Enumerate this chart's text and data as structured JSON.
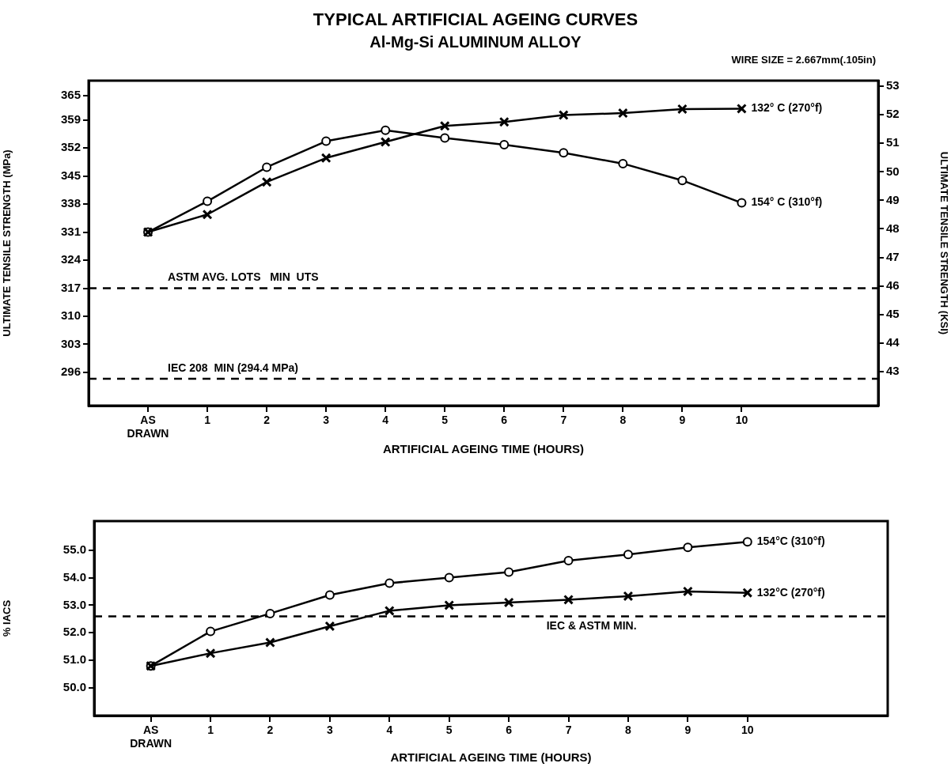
{
  "chart_data": [
    {
      "type": "line",
      "title": "TYPICAL ARTIFICIAL AGEING CURVES",
      "subtitle": "Al-Mg-Si ALUMINUM ALLOY",
      "annotations": [
        "WIRE SIZE = 2.667mm(.105in)"
      ],
      "xlabel": "ARTIFICIAL AGEING TIME (HOURS)",
      "ylabel": "ULTIMATE TENSILE STRENGTH (MPa)",
      "y2label": "ULTIMATE TENSILE STRENGTH (KSI)",
      "x": [
        0,
        1,
        2,
        3,
        4,
        5,
        6,
        7,
        8,
        9,
        10
      ],
      "xlim": [
        -1,
        12.3
      ],
      "xticks": [
        {
          "value": 0,
          "label": "AS DRAWN"
        },
        1,
        2,
        3,
        4,
        5,
        6,
        7,
        8,
        9,
        10
      ],
      "ylim": [
        287.7,
        368.8
      ],
      "yticks": [
        296,
        303,
        310,
        317,
        324,
        331,
        338,
        345,
        352,
        359,
        365
      ],
      "y2lim": [
        41.8,
        53.2
      ],
      "y2ticks": [
        43,
        44,
        45,
        46,
        47,
        48,
        49,
        50,
        51,
        52,
        53
      ],
      "grid": false,
      "line_style": "solid",
      "series": [
        {
          "name": "154° C (310°f)",
          "color": "#000000",
          "marker": "circle",
          "values": [
            331,
            338.7,
            347.2,
            353.7,
            356.4,
            354.5,
            352.8,
            350.8,
            348.1,
            343.9,
            338.3
          ]
        },
        {
          "name": "132° C (270°f)",
          "color": "#000000",
          "marker": "cross",
          "values": [
            331,
            335.4,
            343.5,
            349.5,
            353.5,
            357.5,
            358.5,
            360.2,
            360.7,
            361.7,
            361.8
          ]
        }
      ],
      "ref_lines": [
        {
          "axis": "y",
          "value": 317,
          "label": "ASTM AVG. LOTS   MIN  UTS",
          "color": "#000000",
          "line_style": "dashed"
        },
        {
          "axis": "y",
          "value": 294.4,
          "label": "IEC 208  MIN (294.4 MPa)",
          "color": "#000000",
          "line_style": "dashed"
        }
      ]
    },
    {
      "type": "line",
      "xlabel": "ARTIFICIAL AGEING TIME (HOURS)",
      "ylabel": "% IACS",
      "x": [
        0,
        1,
        2,
        3,
        4,
        5,
        6,
        7,
        8,
        9,
        10
      ],
      "xlim": [
        -0.95,
        12.35
      ],
      "xticks": [
        {
          "value": 0,
          "label": "AS DRAWN"
        },
        1,
        2,
        3,
        4,
        5,
        6,
        7,
        8,
        9,
        10
      ],
      "ylim": [
        49,
        56.05
      ],
      "yticks": [
        {
          "value": 50,
          "label": "50.0"
        },
        {
          "value": 51,
          "label": "51.0"
        },
        {
          "value": 52,
          "label": "52.0"
        },
        {
          "value": 53,
          "label": "53.0"
        },
        {
          "value": 54,
          "label": "54.0"
        },
        {
          "value": 55,
          "label": "55.0"
        }
      ],
      "grid": false,
      "line_style": "solid",
      "series": [
        {
          "name": "154°C (310°f)",
          "color": "#000000",
          "marker": "circle",
          "values": [
            50.8,
            52.05,
            52.7,
            53.37,
            53.8,
            54.0,
            54.2,
            54.62,
            54.84,
            55.1,
            55.3
          ]
        },
        {
          "name": "132°C (270°f)",
          "color": "#000000",
          "marker": "cross",
          "values": [
            50.8,
            51.26,
            51.65,
            52.24,
            52.8,
            53.0,
            53.1,
            53.2,
            53.33,
            53.5,
            53.45
          ]
        }
      ],
      "ref_lines": [
        {
          "axis": "y",
          "value": 52.6,
          "label": "IEC & ASTM MIN.",
          "color": "#000000",
          "line_style": "dashed"
        }
      ]
    }
  ]
}
